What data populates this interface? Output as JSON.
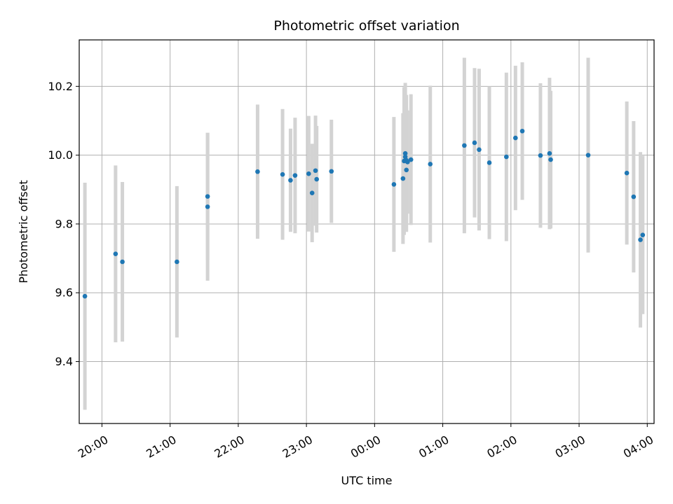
{
  "chart_data": {
    "type": "scatter",
    "title": "Photometric offset variation",
    "xlabel": "UTC time",
    "ylabel": "Photometric offset",
    "xlim": [
      "19:40",
      "04:06"
    ],
    "ylim": [
      9.22,
      10.335
    ],
    "x_ticks": [
      "20:00",
      "21:00",
      "22:00",
      "23:00",
      "00:00",
      "01:00",
      "02:00",
      "03:00",
      "04:00"
    ],
    "y_ticks": [
      9.4,
      9.6,
      9.8,
      10.0,
      10.2
    ],
    "y_tick_labels": [
      "9.4",
      "9.6",
      "9.8",
      "10.0",
      "10.2"
    ],
    "grid": true,
    "colors": {
      "point": "#1f77b4",
      "errorbar": "#d3d3d3",
      "grid": "#b0b0b0"
    },
    "points": [
      {
        "t": "19:45",
        "y": 9.59,
        "err": 0.33
      },
      {
        "t": "20:12",
        "y": 9.713,
        "err": 0.257
      },
      {
        "t": "20:18",
        "y": 9.69,
        "err": 0.232
      },
      {
        "t": "21:06",
        "y": 9.69,
        "err": 0.22
      },
      {
        "t": "21:33",
        "y": 9.88,
        "err": 0.185
      },
      {
        "t": "21:33",
        "y": 9.85,
        "err": 0.215
      },
      {
        "t": "22:17",
        "y": 9.952,
        "err": 0.195
      },
      {
        "t": "22:39",
        "y": 9.944,
        "err": 0.19
      },
      {
        "t": "22:46",
        "y": 9.927,
        "err": 0.15
      },
      {
        "t": "22:50",
        "y": 9.941,
        "err": 0.168
      },
      {
        "t": "23:02",
        "y": 9.946,
        "err": 0.168
      },
      {
        "t": "23:05",
        "y": 9.89,
        "err": 0.143
      },
      {
        "t": "23:08",
        "y": 9.955,
        "err": 0.16
      },
      {
        "t": "23:09",
        "y": 9.93,
        "err": 0.155
      },
      {
        "t": "23:22",
        "y": 9.953,
        "err": 0.15
      },
      {
        "t": "00:17",
        "y": 9.915,
        "err": 0.196
      },
      {
        "t": "00:25",
        "y": 9.932,
        "err": 0.19
      },
      {
        "t": "00:26",
        "y": 9.983,
        "err": 0.215
      },
      {
        "t": "00:27",
        "y": 10.005,
        "err": 0.205
      },
      {
        "t": "00:27",
        "y": 9.995,
        "err": 0.2
      },
      {
        "t": "00:28",
        "y": 9.985,
        "err": 0.19
      },
      {
        "t": "00:28",
        "y": 9.957,
        "err": 0.18
      },
      {
        "t": "00:29",
        "y": 9.98,
        "err": 0.15
      },
      {
        "t": "00:32",
        "y": 9.987,
        "err": 0.19
      },
      {
        "t": "00:49",
        "y": 9.974,
        "err": 0.228
      },
      {
        "t": "01:19",
        "y": 10.028,
        "err": 0.255
      },
      {
        "t": "01:28",
        "y": 10.036,
        "err": 0.217
      },
      {
        "t": "01:32",
        "y": 10.016,
        "err": 0.235
      },
      {
        "t": "01:41",
        "y": 9.978,
        "err": 0.222
      },
      {
        "t": "01:56",
        "y": 9.995,
        "err": 0.245
      },
      {
        "t": "02:04",
        "y": 10.05,
        "err": 0.21
      },
      {
        "t": "02:10",
        "y": 10.07,
        "err": 0.2
      },
      {
        "t": "02:26",
        "y": 9.999,
        "err": 0.21
      },
      {
        "t": "02:34",
        "y": 10.005,
        "err": 0.22
      },
      {
        "t": "02:35",
        "y": 9.987,
        "err": 0.2
      },
      {
        "t": "03:08",
        "y": 10.0,
        "err": 0.283
      },
      {
        "t": "03:42",
        "y": 9.948,
        "err": 0.208
      },
      {
        "t": "03:48",
        "y": 9.879,
        "err": 0.22
      },
      {
        "t": "03:54",
        "y": 9.754,
        "err": 0.255
      },
      {
        "t": "03:56",
        "y": 9.768,
        "err": 0.23
      }
    ]
  }
}
